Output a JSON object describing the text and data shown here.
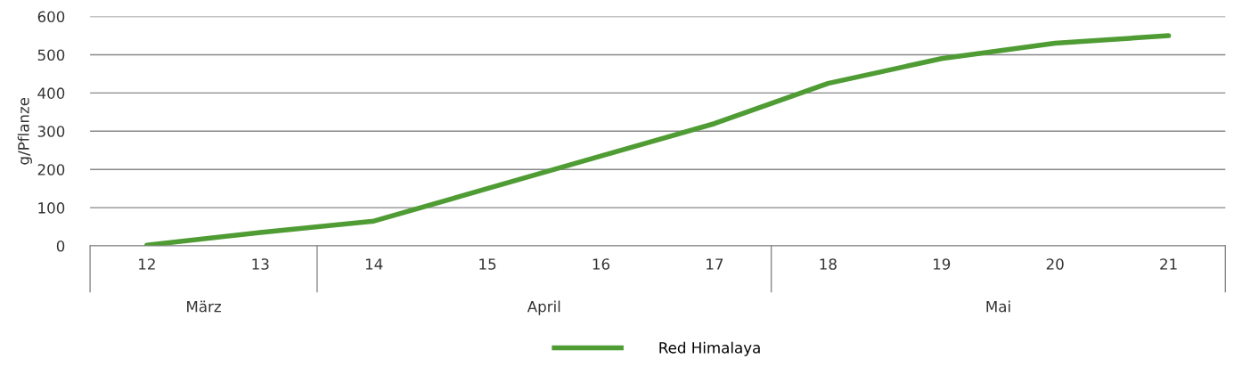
{
  "chart_data": {
    "type": "line",
    "ylabel": "g/Pflanze",
    "categories": [
      "12",
      "13",
      "14",
      "15",
      "16",
      "17",
      "18",
      "19",
      "20",
      "21"
    ],
    "series": [
      {
        "name": "Red Himalaya",
        "color": "#4f9c34",
        "values": [
          2,
          35,
          65,
          150,
          235,
          320,
          425,
          490,
          530,
          550
        ]
      }
    ],
    "ylim": [
      0,
      600
    ],
    "yticks": [
      0,
      100,
      200,
      300,
      400,
      500,
      600
    ],
    "grid": "y",
    "legend": "bottom",
    "annotations": [
      "März",
      "April",
      "Mai"
    ]
  }
}
